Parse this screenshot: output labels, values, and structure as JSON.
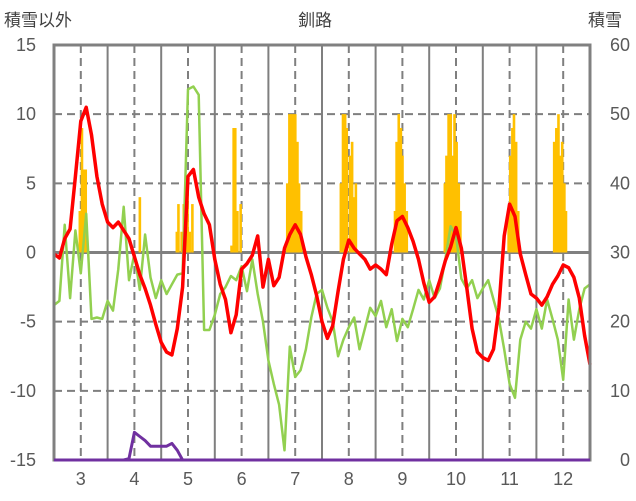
{
  "chart_data": {
    "type": "line",
    "title": "釧路",
    "ylabel_left": "積雪以外",
    "ylabel_right": "積雪",
    "xlim": [
      2.5,
      12.5
    ],
    "ylim_left": [
      -15,
      15
    ],
    "ylim_right": [
      0,
      60
    ],
    "x_ticks": [
      "3",
      "4",
      "5",
      "6",
      "7",
      "8",
      "9",
      "10",
      "11",
      "12"
    ],
    "y_ticks_left": [
      "15",
      "10",
      "5",
      "0",
      "-5",
      "-10",
      "-15"
    ],
    "y_ticks_right": [
      "60",
      "50",
      "40",
      "30",
      "20",
      "10",
      "0"
    ],
    "grid": true,
    "x_start": 2.5,
    "x_step": 0.1,
    "colors": {
      "red": "#ff0000",
      "green": "#92d050",
      "bars": "#ffc000",
      "purple": "#7030a0"
    },
    "series": [
      {
        "name": "red",
        "axis": "left",
        "values": [
          -0.1,
          -0.4,
          1.0,
          1.7,
          5.5,
          9.5,
          10.5,
          8.5,
          5.5,
          3.5,
          2.2,
          1.8,
          2.2,
          1.6,
          1.0,
          -0.3,
          -1.6,
          -2.6,
          -3.8,
          -5.2,
          -6.5,
          -7.2,
          -7.4,
          -5.5,
          -2.5,
          5.5,
          6.0,
          4.0,
          2.8,
          2.0,
          -0.5,
          -2.3,
          -3.4,
          -5.8,
          -4.5,
          -1.2,
          -0.8,
          -0.2,
          1.2,
          -2.5,
          -0.5,
          -2.4,
          -1.8,
          0.3,
          1.3,
          2.0,
          1.3,
          -0.3,
          -1.6,
          -3.1,
          -5.0,
          -6.2,
          -5.3,
          -2.8,
          -0.5,
          0.9,
          0.3,
          -0.1,
          -0.5,
          -1.2,
          -0.9,
          -1.2,
          -1.6,
          0.6,
          2.3,
          2.6,
          1.8,
          0.8,
          -0.5,
          -2.2,
          -3.6,
          -3.2,
          -2.0,
          -0.6,
          0.4,
          1.8,
          0.3,
          -2.5,
          -5.5,
          -7.2,
          -7.6,
          -7.8,
          -7.0,
          -4.0,
          1.2,
          3.5,
          2.6,
          -0.1,
          -1.6,
          -3.0,
          -3.3,
          -3.8,
          -3.2,
          -2.3,
          -1.7,
          -0.9,
          -1.1,
          -1.8,
          -3.3,
          -6.0,
          -8.1
        ]
      },
      {
        "name": "green",
        "axis": "left",
        "values": [
          -3.8,
          -3.5,
          2.0,
          -3.3,
          1.6,
          -1.5,
          2.8,
          -4.8,
          -4.7,
          -4.8,
          -3.5,
          -4.2,
          -1.2,
          3.3,
          -2.0,
          -0.1,
          -2.7,
          1.3,
          -1.8,
          -3.3,
          -2.0,
          -3.0,
          -2.3,
          -1.6,
          -1.5,
          11.8,
          12.0,
          11.4,
          -5.6,
          -5.6,
          -4.5,
          -3.0,
          -2.5,
          -1.7,
          -2.0,
          -1.0,
          -2.8,
          -0.5,
          -3.0,
          -5.0,
          -7.8,
          -9.5,
          -11.0,
          -14.3,
          -6.8,
          -9.0,
          -8.5,
          -7.0,
          -4.7,
          -3.0,
          -2.7,
          -4.0,
          -5.0,
          -7.5,
          -6.3,
          -5.4,
          -4.7,
          -7.0,
          -5.5,
          -4.0,
          -4.6,
          -3.5,
          -5.4,
          -4.1,
          -6.4,
          -4.8,
          -5.4,
          -4.1,
          -2.7,
          -3.4,
          -2.0,
          -3.3,
          -2.6,
          -0.5,
          1.9,
          1.2,
          -1.9,
          -2.6,
          -2.0,
          -3.3,
          -2.6,
          -2.0,
          -3.4,
          -4.8,
          -7.0,
          -9.5,
          -10.5,
          -6.3,
          -5.0,
          -5.5,
          -4.1,
          -5.5,
          -3.4,
          -4.8,
          -6.3,
          -9.2,
          -3.4,
          -6.3,
          -4.1,
          -2.6,
          -2.3
        ]
      },
      {
        "name": "purple",
        "axis": "left",
        "values": [
          -15,
          -15,
          -15,
          -15,
          -15,
          -15,
          -15,
          -15,
          -15,
          -15,
          -15,
          -15,
          -15,
          -15,
          -14.9,
          -13.0,
          -13.3,
          -13.6,
          -14.0,
          -14.0,
          -14.0,
          -14.0,
          -13.8,
          -14.3,
          -15,
          -15,
          -15,
          -15,
          -15,
          -15,
          -15,
          -15,
          -15,
          -15,
          -15,
          -15,
          -15,
          -15,
          -15,
          -15,
          -15,
          -15,
          -15,
          -15,
          -15,
          -15,
          -15,
          -15,
          -15,
          -15,
          -15,
          -15,
          -15,
          -15,
          -15,
          -15,
          -15,
          -15,
          -15,
          -15,
          -15,
          -15,
          -15,
          -15,
          -15,
          -15,
          -15,
          -15,
          -15,
          -15,
          -15,
          -15,
          -15,
          -15,
          -15,
          -15,
          -15,
          -15,
          -15,
          -15,
          -15,
          -15,
          -15,
          -15,
          -15,
          -15,
          -15,
          -15,
          -15,
          -15,
          -15,
          -15,
          -15,
          -15,
          -15,
          -15,
          -15,
          -15,
          -15,
          -15,
          -15
        ]
      }
    ],
    "bars": {
      "name": "積雪",
      "axis": "right",
      "base": 30,
      "points": [
        [
          2.98,
          36
        ],
        [
          3.02,
          48
        ],
        [
          3.06,
          42
        ],
        [
          3.09,
          42
        ],
        [
          4.1,
          38
        ],
        [
          4.79,
          33
        ],
        [
          4.82,
          37
        ],
        [
          4.88,
          33
        ],
        [
          4.92,
          37
        ],
        [
          4.95,
          33
        ],
        [
          4.99,
          40
        ],
        [
          5.03,
          33
        ],
        [
          5.08,
          37
        ],
        [
          5.81,
          31
        ],
        [
          5.85,
          48
        ],
        [
          5.88,
          48
        ],
        [
          5.92,
          36
        ],
        [
          5.98,
          37
        ],
        [
          6.85,
          40
        ],
        [
          6.89,
          50
        ],
        [
          6.92,
          50
        ],
        [
          6.96,
          50
        ],
        [
          7.0,
          50
        ],
        [
          7.04,
          46
        ],
        [
          7.07,
          40
        ],
        [
          7.11,
          36
        ],
        [
          7.85,
          40
        ],
        [
          7.89,
          50
        ],
        [
          7.93,
          50
        ],
        [
          7.96,
          48
        ],
        [
          8.02,
          44
        ],
        [
          8.06,
          46
        ],
        [
          8.09,
          38
        ],
        [
          8.13,
          40
        ],
        [
          8.86,
          36
        ],
        [
          8.89,
          46
        ],
        [
          8.93,
          50
        ],
        [
          8.97,
          48
        ],
        [
          9.0,
          44
        ],
        [
          9.04,
          40
        ],
        [
          9.08,
          36
        ],
        [
          9.79,
          40
        ],
        [
          9.82,
          44
        ],
        [
          9.86,
          50
        ],
        [
          9.9,
          50
        ],
        [
          9.93,
          44
        ],
        [
          9.97,
          50
        ],
        [
          10.01,
          46
        ],
        [
          10.05,
          40
        ],
        [
          10.08,
          36
        ],
        [
          10.98,
          36
        ],
        [
          11.01,
          44
        ],
        [
          11.05,
          48
        ],
        [
          11.08,
          50
        ],
        [
          11.12,
          46
        ],
        [
          11.16,
          36
        ],
        [
          11.83,
          46
        ],
        [
          11.87,
          48
        ],
        [
          11.91,
          50
        ],
        [
          11.94,
          44
        ],
        [
          11.98,
          46
        ],
        [
          12.02,
          40
        ],
        [
          12.05,
          36
        ]
      ]
    }
  }
}
